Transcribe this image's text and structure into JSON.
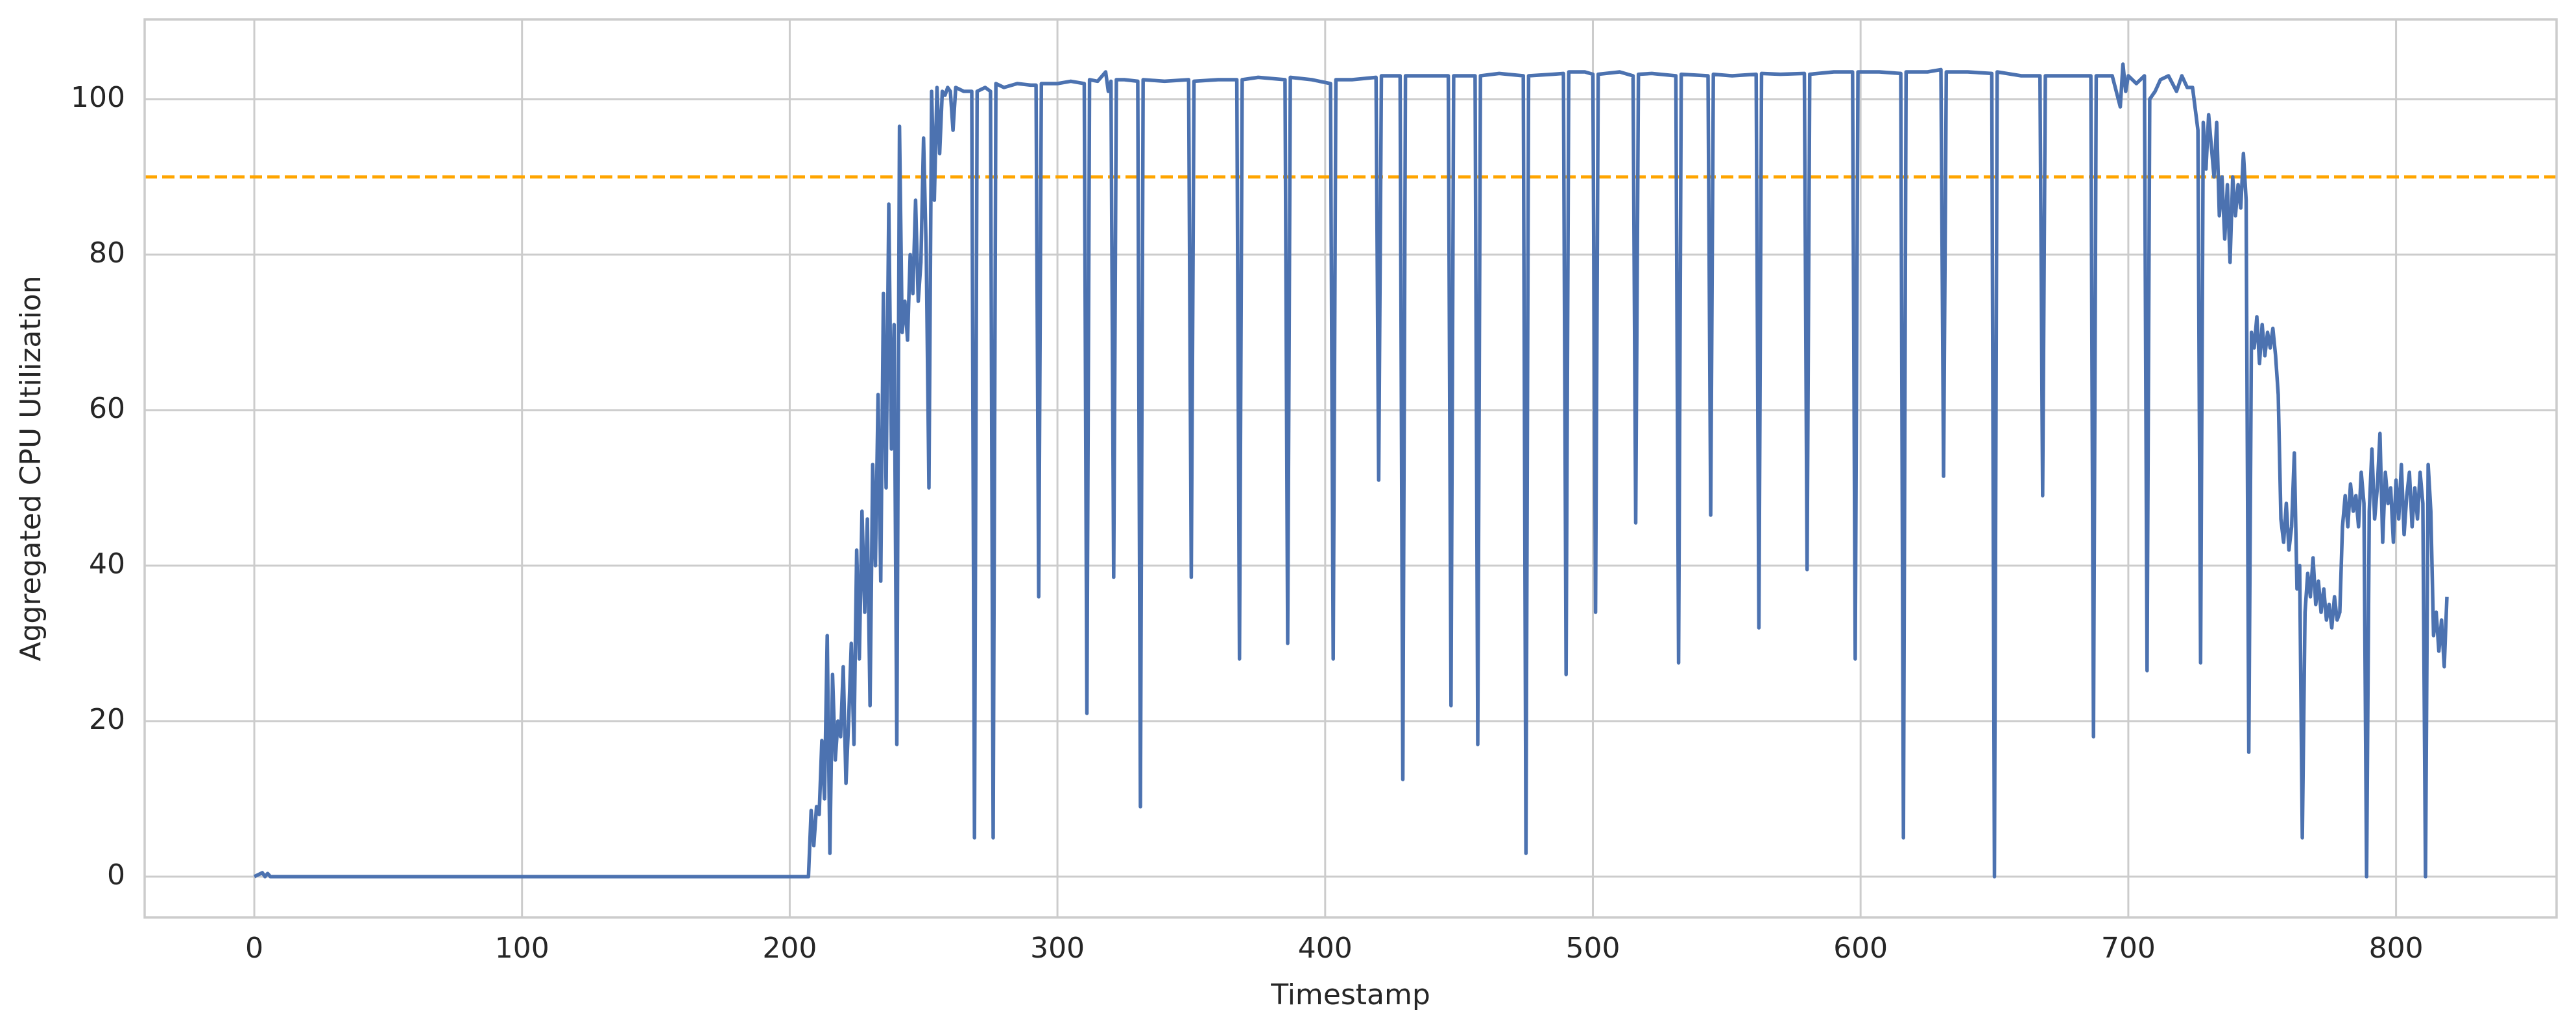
{
  "chart_data": {
    "type": "line",
    "xlabel": "Timestamp",
    "ylabel": "Aggregated CPU Utilization",
    "xlim": [
      -40.95,
      859.95
    ],
    "xticks": [
      0,
      100,
      200,
      300,
      400,
      500,
      600,
      700,
      800
    ],
    "ylim": [
      -5.25,
      110.25
    ],
    "yticks": [
      0,
      20,
      40,
      60,
      80,
      100
    ],
    "grid": true,
    "hlines": [
      {
        "value": 90,
        "color": "#ffa500",
        "style": "dashed"
      }
    ],
    "x": [
      0,
      3,
      4,
      5,
      6,
      205,
      207,
      208,
      209,
      210,
      211,
      212,
      213,
      214,
      215,
      216,
      217,
      218,
      219,
      220,
      221,
      222,
      223,
      224,
      225,
      226,
      227,
      228,
      229,
      230,
      231,
      232,
      233,
      234,
      235,
      236,
      237,
      238,
      239,
      240,
      241,
      242,
      243,
      244,
      245,
      246,
      247,
      248,
      249,
      250,
      251,
      252,
      253,
      254,
      255,
      256,
      257,
      258,
      259,
      260,
      261,
      262,
      265,
      268,
      269,
      270,
      273,
      275,
      276,
      277,
      280,
      285,
      290,
      292,
      293,
      294,
      300,
      305,
      310,
      311,
      312,
      315,
      318,
      319,
      320,
      321,
      322,
      325,
      330,
      331,
      332,
      340,
      349,
      350,
      351,
      360,
      367,
      368,
      369,
      375,
      385,
      386,
      387,
      395,
      402,
      403,
      404,
      410,
      419,
      420,
      421,
      428,
      429,
      430,
      438,
      446,
      447,
      448,
      456,
      457,
      458,
      465,
      474,
      475,
      476,
      485,
      489,
      490,
      491,
      497,
      500,
      501,
      502,
      510,
      515,
      516,
      517,
      522,
      531,
      532,
      533,
      543,
      544,
      545,
      552,
      561,
      562,
      563,
      570,
      579,
      580,
      581,
      590,
      597,
      598,
      599,
      607,
      615,
      616,
      617,
      625,
      630,
      631,
      632,
      640,
      649,
      650,
      651,
      660,
      667,
      668,
      669,
      677,
      686,
      687,
      688,
      694,
      697,
      698,
      699,
      700,
      703,
      706,
      707,
      708,
      710,
      712,
      715,
      718,
      720,
      722,
      724,
      726,
      727,
      728,
      729,
      730,
      731,
      732,
      733,
      734,
      735,
      736,
      737,
      738,
      739,
      740,
      741,
      742,
      743,
      744,
      745,
      746,
      747,
      748,
      749,
      750,
      751,
      752,
      753,
      754,
      755,
      756,
      757,
      758,
      759,
      760,
      761,
      762,
      763,
      764,
      765,
      766,
      767,
      768,
      769,
      770,
      771,
      772,
      773,
      774,
      775,
      776,
      777,
      778,
      779,
      780,
      781,
      782,
      783,
      784,
      785,
      786,
      787,
      788,
      789,
      790,
      791,
      792,
      793,
      794,
      795,
      796,
      797,
      798,
      799,
      800,
      801,
      802,
      803,
      804,
      805,
      806,
      807,
      808,
      809,
      810,
      811,
      812,
      813,
      814,
      815,
      816,
      817,
      818,
      819
    ],
    "series": [
      {
        "color": "#4c72b0",
        "values": [
          0,
          0.5,
          0,
          0.4,
          0,
          0,
          0,
          8.5,
          4,
          9,
          8,
          17.5,
          10,
          31,
          3,
          26,
          15,
          20,
          18,
          27,
          12,
          20,
          30,
          17,
          42,
          28,
          47,
          34,
          46,
          22,
          53,
          40,
          62,
          38,
          75,
          50,
          86.5,
          55,
          71,
          17,
          96.5,
          70,
          74,
          69,
          80,
          75,
          87,
          74,
          79,
          95,
          80,
          50,
          101,
          87,
          101.5,
          93,
          101,
          100.5,
          101.5,
          101,
          96,
          101.5,
          101,
          101,
          5,
          101,
          101.5,
          101,
          5,
          102,
          101.5,
          102,
          101.8,
          101.8,
          36,
          102,
          102,
          102.3,
          102,
          21,
          102.5,
          102.3,
          103.5,
          101,
          102.3,
          38.5,
          102.5,
          102.5,
          102.3,
          9,
          102.5,
          102.3,
          102.5,
          38.5,
          102.3,
          102.5,
          102.5,
          28,
          102.5,
          102.8,
          102.5,
          30,
          102.8,
          102.5,
          102,
          28,
          102.5,
          102.5,
          102.8,
          51,
          103,
          103,
          12.5,
          103,
          103,
          103,
          22,
          103,
          103,
          17,
          103,
          103.3,
          103,
          3,
          103,
          103.2,
          103.3,
          26,
          103.5,
          103.5,
          103.2,
          34,
          103.2,
          103.5,
          103,
          45.5,
          103.2,
          103.3,
          103,
          27.5,
          103.2,
          103,
          46.5,
          103.2,
          103,
          103.2,
          32,
          103.3,
          103.2,
          103.3,
          39.5,
          103.2,
          103.5,
          103.5,
          28,
          103.5,
          103.5,
          103.3,
          5,
          103.5,
          103.5,
          103.8,
          51.5,
          103.5,
          103.5,
          103.3,
          0,
          103.5,
          103,
          103,
          49,
          103,
          103,
          103,
          18,
          103,
          103,
          99,
          104.5,
          101,
          103,
          102,
          103,
          26.5,
          100,
          101,
          102.5,
          103,
          101,
          103,
          101.5,
          101.5,
          96,
          27.5,
          97,
          91,
          98,
          94,
          90,
          97,
          85,
          90,
          82,
          89,
          79,
          90,
          85,
          89,
          86,
          93,
          87,
          16,
          70,
          68,
          72,
          66,
          71,
          67,
          70,
          68,
          70.5,
          67,
          62,
          46,
          43,
          48,
          42,
          45,
          54.5,
          37,
          40,
          5,
          34,
          39,
          36,
          41,
          35,
          38,
          34,
          37,
          33,
          35,
          32,
          36,
          33,
          34,
          45,
          49,
          45,
          50.5,
          47,
          49,
          45,
          52,
          48,
          0,
          47,
          55,
          46,
          50,
          57,
          43,
          52,
          48,
          50,
          43,
          51,
          46,
          53,
          44,
          49,
          52,
          45,
          50,
          46,
          52,
          48,
          0,
          53,
          47,
          31,
          34,
          29,
          33,
          27,
          36
        ]
      }
    ]
  }
}
